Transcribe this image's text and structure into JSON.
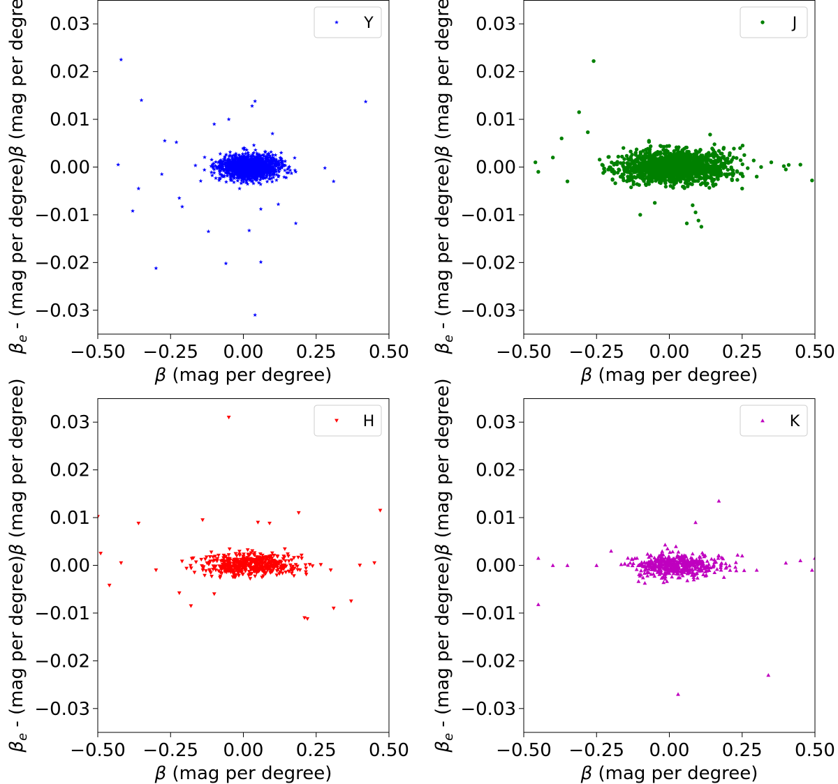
{
  "chart_data": [
    {
      "type": "scatter",
      "series": [
        {
          "name": "Y",
          "marker": "star",
          "color": "#0000ff",
          "x": [
            -0.42,
            -0.35,
            -0.43,
            -0.38,
            -0.36,
            -0.3,
            -0.28,
            -0.27,
            -0.23,
            -0.22,
            -0.21,
            -0.12,
            -0.1,
            -0.06,
            -0.05,
            0.02,
            0.03,
            0.04,
            0.04,
            0.06,
            0.06,
            0.1,
            0.12,
            0.18,
            0.28,
            0.31,
            0.42,
            0.13,
            0.15,
            -0.08
          ],
          "y": [
            0.0225,
            0.014,
            0.0005,
            -0.0092,
            -0.0045,
            -0.0212,
            -0.0015,
            0.0055,
            0.0052,
            -0.0065,
            -0.0083,
            -0.0135,
            0.009,
            -0.0202,
            0.01,
            -0.0133,
            0.0128,
            -0.031,
            0.0138,
            -0.0199,
            -0.0088,
            0.007,
            -0.0078,
            -0.0118,
            -0.0002,
            -0.003,
            0.0137,
            0.003,
            -0.0012,
            -0.0015
          ]
        }
      ],
      "xlabel": "β (mag per degree)",
      "ylabel": "βe - β (mag per degree)",
      "ylabel_subscript": "e",
      "xlim": [
        -0.5,
        0.5
      ],
      "ylim": [
        -0.035,
        0.035
      ],
      "xticks": [
        "−0.50",
        "−0.25",
        "0.00",
        "0.25",
        "0.50"
      ],
      "yticks": [
        "−0.03",
        "−0.02",
        "−0.01",
        "0.00",
        "0.01",
        "0.02",
        "0.03"
      ],
      "legend": "top-right",
      "cluster": {
        "count": 1600,
        "cx": 0.02,
        "sx": 0.06,
        "sy": 0.0012
      }
    },
    {
      "type": "scatter",
      "series": [
        {
          "name": "J",
          "marker": "circle",
          "color": "#008000",
          "x": [
            -0.26,
            -0.31,
            -0.28,
            -0.37,
            -0.07,
            0.14,
            -0.05,
            0.08,
            0.06,
            0.1,
            0.11,
            -0.1,
            -0.46,
            -0.45,
            0.49,
            0.45,
            0.4,
            0.35,
            0.3,
            0.25,
            0.22,
            -0.35,
            -0.4,
            0.09
          ],
          "y": [
            0.0222,
            0.0115,
            0.0073,
            0.006,
            0.0055,
            0.0068,
            -0.0075,
            -0.008,
            -0.0118,
            -0.0112,
            -0.0125,
            -0.01,
            0.001,
            -0.001,
            -0.0028,
            0.0005,
            -0.0005,
            0.001,
            -0.002,
            -0.0045,
            0.002,
            -0.003,
            0.002,
            -0.0095
          ]
        }
      ],
      "xlabel": "β (mag per degree)",
      "ylabel": "βe - β (mag per degree)",
      "ylabel_subscript": "e",
      "xlim": [
        -0.5,
        0.5
      ],
      "ylim": [
        -0.035,
        0.035
      ],
      "xticks": [
        "−0.50",
        "−0.25",
        "0.00",
        "0.25",
        "0.50"
      ],
      "yticks": [
        "−0.03",
        "−0.02",
        "−0.01",
        "0.00",
        "0.01",
        "0.02",
        "0.03"
      ],
      "legend": "top-right",
      "cluster": {
        "count": 1500,
        "cx": 0.02,
        "sx": 0.11,
        "sy": 0.0016
      }
    },
    {
      "type": "scatter",
      "series": [
        {
          "name": "H",
          "marker": "triangle-down",
          "color": "#ff0000",
          "x": [
            -0.05,
            0.47,
            0.19,
            -0.5,
            -0.36,
            -0.14,
            0.09,
            0.21,
            -0.22,
            -0.18,
            0.22,
            0.31,
            0.37,
            -0.46,
            -0.49,
            -0.42,
            0.45,
            0.4,
            0.3,
            -0.3,
            0.05,
            -0.1
          ],
          "y": [
            0.031,
            0.0115,
            0.011,
            0.0102,
            0.0088,
            0.0095,
            0.0088,
            -0.011,
            -0.0058,
            -0.0085,
            -0.0112,
            -0.009,
            -0.0075,
            -0.0042,
            0.0025,
            0.0005,
            0.0005,
            0.0,
            -0.001,
            -0.001,
            0.009,
            -0.006
          ]
        }
      ],
      "xlabel": "β (mag per degree)",
      "ylabel": "βe - β (mag per degree)",
      "ylabel_subscript": "e",
      "xlim": [
        -0.5,
        0.5
      ],
      "ylim": [
        -0.035,
        0.035
      ],
      "xticks": [
        "−0.50",
        "−0.25",
        "0.00",
        "0.25",
        "0.50"
      ],
      "yticks": [
        "−0.03",
        "−0.02",
        "−0.01",
        "0.00",
        "0.01",
        "0.02",
        "0.03"
      ],
      "legend": "top-right",
      "cluster": {
        "count": 500,
        "cx": 0.02,
        "sx": 0.1,
        "sy": 0.0012
      }
    },
    {
      "type": "scatter",
      "series": [
        {
          "name": "K",
          "marker": "triangle-up",
          "color": "#bf00bf",
          "x": [
            0.17,
            0.03,
            0.34,
            -0.45,
            -0.45,
            0.5,
            0.49,
            -0.4,
            0.4,
            0.45,
            0.09,
            -0.2,
            -0.25,
            0.3,
            -0.35,
            0.25
          ],
          "y": [
            0.0135,
            -0.027,
            -0.023,
            -0.0082,
            0.0015,
            0.0015,
            -0.001,
            0.0,
            0.0005,
            0.001,
            0.009,
            0.003,
            0.0,
            -0.001,
            0.0,
            0.002
          ]
        }
      ],
      "xlabel": "β (mag per degree)",
      "ylabel": "βe - β (mag per degree)",
      "ylabel_subscript": "e",
      "xlim": [
        -0.5,
        0.5
      ],
      "ylim": [
        -0.035,
        0.035
      ],
      "xticks": [
        "−0.50",
        "−0.25",
        "0.00",
        "0.25",
        "0.50"
      ],
      "yticks": [
        "−0.03",
        "−0.02",
        "−0.01",
        "0.00",
        "0.01",
        "0.02",
        "0.03"
      ],
      "legend": "top-right",
      "cluster": {
        "count": 500,
        "cx": 0.02,
        "sx": 0.09,
        "sy": 0.0012
      }
    }
  ]
}
